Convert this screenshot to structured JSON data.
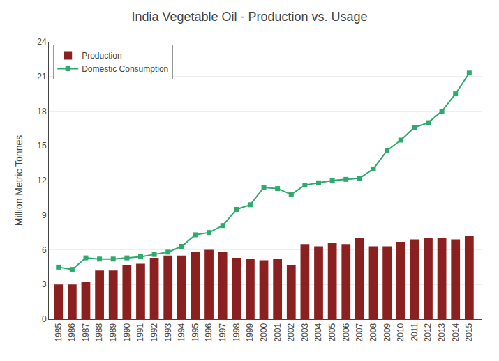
{
  "chart_data": {
    "type": "bar",
    "title": "India Vegetable Oil - Production vs. Usage",
    "y_label": "Million Metric Tonnes",
    "x": [
      1985,
      1986,
      1987,
      1988,
      1989,
      1990,
      1991,
      1992,
      1993,
      1994,
      1995,
      1996,
      1997,
      1998,
      1999,
      2000,
      2001,
      2002,
      2003,
      2004,
      2005,
      2006,
      2007,
      2008,
      2009,
      2010,
      2011,
      2012,
      2013,
      2014,
      2015
    ],
    "series": [
      {
        "name": "Production",
        "type": "bar",
        "color": "#8B2020",
        "values": [
          3.0,
          3.0,
          3.2,
          4.2,
          4.2,
          4.7,
          4.8,
          5.3,
          5.5,
          5.5,
          5.8,
          6.0,
          5.8,
          5.3,
          5.2,
          5.1,
          5.2,
          4.7,
          6.5,
          6.3,
          6.6,
          6.5,
          7.0,
          6.3,
          6.3,
          6.7,
          6.9,
          7.0,
          7.0,
          6.9,
          7.2
        ]
      },
      {
        "name": "Domestic Consumption",
        "type": "line",
        "color": "#2EAA6E",
        "marker": "square",
        "line_style": "solid",
        "values": [
          4.5,
          4.3,
          5.3,
          5.2,
          5.2,
          5.3,
          5.4,
          5.6,
          5.8,
          6.3,
          7.3,
          7.5,
          8.1,
          9.5,
          9.9,
          11.4,
          11.3,
          10.8,
          11.6,
          11.8,
          12.0,
          12.1,
          12.2,
          13.0,
          14.6,
          15.5,
          16.6,
          17.0,
          18.0,
          19.5,
          21.3
        ]
      }
    ],
    "xlim": [
      1984.3,
      2015.9
    ],
    "xticks": [
      1985,
      1986,
      1987,
      1988,
      1989,
      1990,
      1991,
      1992,
      1993,
      1994,
      1995,
      1996,
      1997,
      1998,
      1999,
      2000,
      2001,
      2002,
      2003,
      2004,
      2005,
      2006,
      2007,
      2008,
      2009,
      2010,
      2011,
      2012,
      2013,
      2014,
      2015
    ],
    "ylim": [
      0,
      24
    ],
    "yticks": [
      0,
      3,
      6,
      9,
      12,
      15,
      18,
      21,
      24
    ],
    "grid": "y",
    "legend": "upper left"
  }
}
